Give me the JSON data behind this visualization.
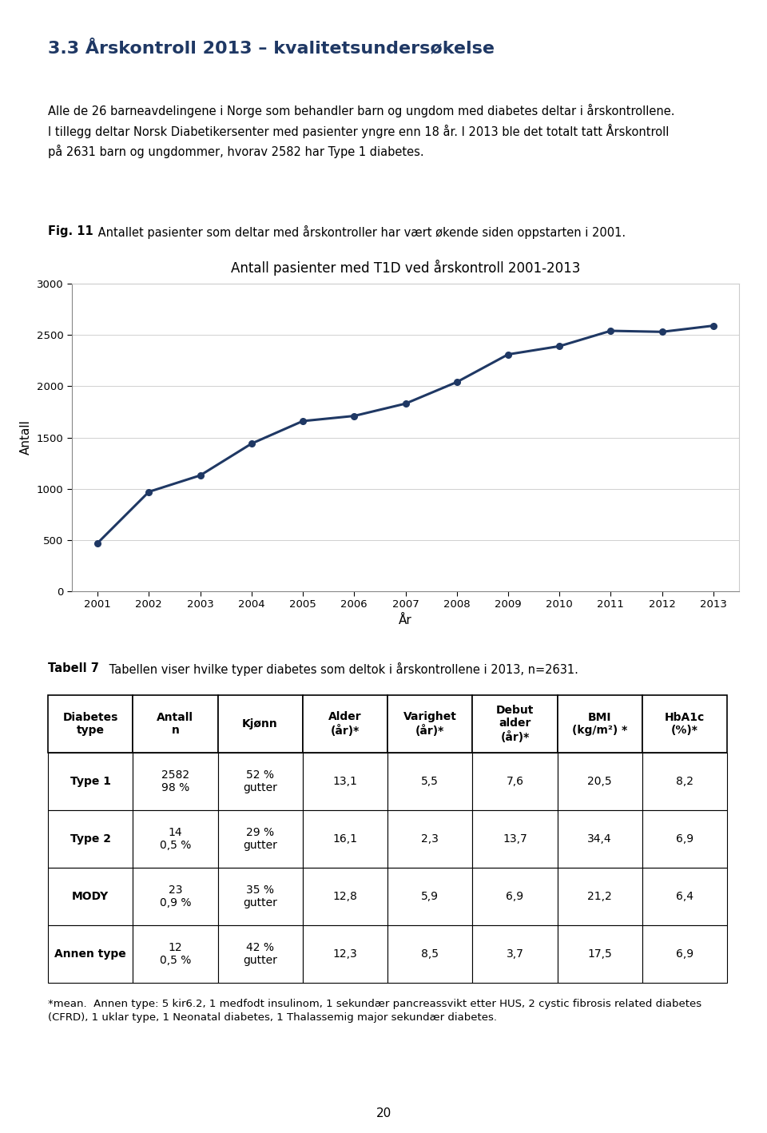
{
  "page_title": "3.3 Årskontroll 2013 – kvalitetsundersøkelse",
  "page_title_color": "#1F3864",
  "intro_text": "Alle de 26 barneavdelingene i Norge som behandler barn og ungdom med diabetes deltar i årskontrollene.\nI tillegg deltar Norsk Diabetikersenter med pasienter yngre enn 18 år. I 2013 ble det totalt tatt Årskontroll\npå 2631 barn og ungdommer, hvorav 2582 har Type 1 diabetes.",
  "fig_caption_bold": "Fig. 11",
  "fig_caption_rest": " Antallet pasienter som deltar med årskontroller har vært økende siden oppstarten i 2001.",
  "chart_title": "Antall pasienter med T1D ved årskontroll 2001-2013",
  "chart_xlabel": "År",
  "chart_ylabel": "Antall",
  "chart_years": [
    2001,
    2002,
    2003,
    2004,
    2005,
    2006,
    2007,
    2008,
    2009,
    2010,
    2011,
    2012,
    2013
  ],
  "chart_values": [
    470,
    970,
    1130,
    1440,
    1660,
    1710,
    1830,
    2040,
    2310,
    2390,
    2540,
    2530,
    2590
  ],
  "chart_ylim": [
    0,
    3000
  ],
  "chart_yticks": [
    0,
    500,
    1000,
    1500,
    2000,
    2500,
    3000
  ],
  "line_color": "#1F3864",
  "marker_color": "#1F3864",
  "tabell_caption_bold": "Tabell 7",
  "tabell_caption_rest": " Tabellen viser hvilke typer diabetes som deltok i årskontrollene i 2013, n=2631.",
  "table_col_headers": [
    "Diabetes\ntype",
    "Antall\nn",
    "Kjønn",
    "Alder\n(år)*",
    "Varighet\n(år)*",
    "Debut\nalder\n(år)*",
    "BMI\n(kg/m²) *",
    "HbA1c\n(%)*"
  ],
  "table_rows": [
    [
      "Type 1",
      "2582\n98 %",
      "52 %\ngutter",
      "13,1",
      "5,5",
      "7,6",
      "20,5",
      "8,2"
    ],
    [
      "Type 2",
      "14\n0,5 %",
      "29 %\ngutter",
      "16,1",
      "2,3",
      "13,7",
      "34,4",
      "6,9"
    ],
    [
      "MODY",
      "23\n0,9 %",
      "35 %\ngutter",
      "12,8",
      "5,9",
      "6,9",
      "21,2",
      "6,4"
    ],
    [
      "Annen type",
      "12\n0,5 %",
      "42 %\ngutter",
      "12,3",
      "8,5",
      "3,7",
      "17,5",
      "6,9"
    ]
  ],
  "footnote_line1": "*mean.  Annen type: 5 kir6.2, 1 medfodt insulinom, 1 sekundær pancreassvikt etter HUS, 2 cystic fibrosis related diabetes",
  "footnote_line2": "(CFRD), 1 uklar type, 1 Neonatal diabetes, 1 Thalassemig major sekundær diabetes.",
  "page_number": "20",
  "background_color": "#ffffff",
  "text_color": "#000000"
}
